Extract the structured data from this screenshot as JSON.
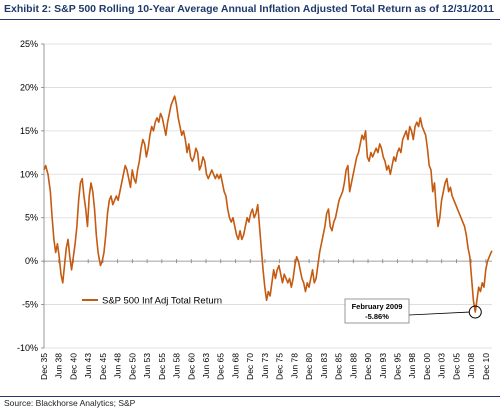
{
  "chart_data": {
    "type": "line",
    "title": "Exhibit 2: S&P 500 Rolling 10-Year Average Annual Inflation Adjusted Total Return as of 12/31/2011",
    "xlabel": "",
    "ylabel": "",
    "ylim": [
      -10,
      25
    ],
    "yticks": [
      {
        "value": -10,
        "label": "-10%"
      },
      {
        "value": -5,
        "label": "-5%"
      },
      {
        "value": 0,
        "label": "0%"
      },
      {
        "value": 5,
        "label": "5%"
      },
      {
        "value": 10,
        "label": "10%"
      },
      {
        "value": 15,
        "label": "15%"
      },
      {
        "value": 20,
        "label": "20%"
      },
      {
        "value": 25,
        "label": "25%"
      }
    ],
    "xlim": [
      1935.92,
      2011.96
    ],
    "xticks": [
      {
        "value": 1935.92,
        "label": "Dec 35"
      },
      {
        "value": 1938.42,
        "label": "Jun 38"
      },
      {
        "value": 1940.92,
        "label": "Dec 40"
      },
      {
        "value": 1943.42,
        "label": "Jun 43"
      },
      {
        "value": 1945.92,
        "label": "Dec 45"
      },
      {
        "value": 1948.42,
        "label": "Jun 48"
      },
      {
        "value": 1950.92,
        "label": "Dec 50"
      },
      {
        "value": 1953.42,
        "label": "Jun 53"
      },
      {
        "value": 1955.92,
        "label": "Dec 55"
      },
      {
        "value": 1958.42,
        "label": "Jun 58"
      },
      {
        "value": 1960.92,
        "label": "Dec 60"
      },
      {
        "value": 1963.42,
        "label": "Jun 63"
      },
      {
        "value": 1965.92,
        "label": "Dec 65"
      },
      {
        "value": 1968.42,
        "label": "Jun 68"
      },
      {
        "value": 1970.92,
        "label": "Dec 70"
      },
      {
        "value": 1973.42,
        "label": "Jun 73"
      },
      {
        "value": 1975.92,
        "label": "Dec 75"
      },
      {
        "value": 1978.42,
        "label": "Jun 78"
      },
      {
        "value": 1980.92,
        "label": "Dec 80"
      },
      {
        "value": 1983.42,
        "label": "Jun 83"
      },
      {
        "value": 1985.92,
        "label": "Dec 85"
      },
      {
        "value": 1988.42,
        "label": "Jun 88"
      },
      {
        "value": 1990.92,
        "label": "Dec 90"
      },
      {
        "value": 1993.42,
        "label": "Jun 93"
      },
      {
        "value": 1995.92,
        "label": "Dec 95"
      },
      {
        "value": 1998.42,
        "label": "Jun 98"
      },
      {
        "value": 2000.92,
        "label": "Dec 00"
      },
      {
        "value": 2003.42,
        "label": "Jun 03"
      },
      {
        "value": 2005.92,
        "label": "Dec 05"
      },
      {
        "value": 2008.42,
        "label": "Jun 08"
      },
      {
        "value": 2010.92,
        "label": "Dec 10"
      }
    ],
    "grid": {
      "horizontal": true,
      "vertical": false
    },
    "legend_position": "bottom-left",
    "series": [
      {
        "name": "S&P 500 Inf Adj Total Return",
        "color": "#c55a11",
        "points": [
          [
            1935.92,
            10.5
          ],
          [
            1936.2,
            11
          ],
          [
            1936.6,
            10
          ],
          [
            1937.0,
            8
          ],
          [
            1937.3,
            5
          ],
          [
            1937.6,
            2.5
          ],
          [
            1937.9,
            1
          ],
          [
            1938.2,
            2
          ],
          [
            1938.5,
            0.5
          ],
          [
            1938.8,
            -1.5
          ],
          [
            1939.1,
            -2.5
          ],
          [
            1939.4,
            -0.5
          ],
          [
            1939.7,
            1.5
          ],
          [
            1940.0,
            2.5
          ],
          [
            1940.3,
            0.5
          ],
          [
            1940.6,
            -1
          ],
          [
            1940.9,
            0.5
          ],
          [
            1941.2,
            2
          ],
          [
            1941.5,
            4
          ],
          [
            1941.8,
            7
          ],
          [
            1942.1,
            9
          ],
          [
            1942.4,
            9.5
          ],
          [
            1942.7,
            7.5
          ],
          [
            1943.0,
            6
          ],
          [
            1943.3,
            4
          ],
          [
            1943.6,
            7.5
          ],
          [
            1943.9,
            9
          ],
          [
            1944.2,
            8
          ],
          [
            1944.5,
            6
          ],
          [
            1944.8,
            3
          ],
          [
            1945.1,
            1
          ],
          [
            1945.5,
            -0.5
          ],
          [
            1945.8,
            0
          ],
          [
            1946.1,
            1
          ],
          [
            1946.4,
            3
          ],
          [
            1946.7,
            5.5
          ],
          [
            1947.0,
            7
          ],
          [
            1947.3,
            7.5
          ],
          [
            1947.6,
            6.5
          ],
          [
            1947.9,
            7
          ],
          [
            1948.2,
            7.5
          ],
          [
            1948.5,
            7
          ],
          [
            1948.8,
            8
          ],
          [
            1949.1,
            9
          ],
          [
            1949.4,
            10
          ],
          [
            1949.7,
            11
          ],
          [
            1950.0,
            10.5
          ],
          [
            1950.3,
            9.5
          ],
          [
            1950.6,
            8.5
          ],
          [
            1950.9,
            10.5
          ],
          [
            1951.2,
            9.5
          ],
          [
            1951.5,
            9
          ],
          [
            1951.8,
            10.5
          ],
          [
            1952.1,
            11.5
          ],
          [
            1952.4,
            13
          ],
          [
            1952.7,
            14
          ],
          [
            1953.0,
            13.5
          ],
          [
            1953.3,
            12
          ],
          [
            1953.6,
            13
          ],
          [
            1953.9,
            14.5
          ],
          [
            1954.2,
            15.5
          ],
          [
            1954.5,
            15
          ],
          [
            1954.8,
            16
          ],
          [
            1955.1,
            16.5
          ],
          [
            1955.4,
            16
          ],
          [
            1955.7,
            17
          ],
          [
            1956.0,
            16.5
          ],
          [
            1956.3,
            15.5
          ],
          [
            1956.6,
            14.5
          ],
          [
            1956.9,
            16
          ],
          [
            1957.2,
            17
          ],
          [
            1957.5,
            18
          ],
          [
            1957.8,
            18.5
          ],
          [
            1958.1,
            19
          ],
          [
            1958.4,
            18
          ],
          [
            1958.7,
            16.5
          ],
          [
            1959.0,
            15.5
          ],
          [
            1959.3,
            14.5
          ],
          [
            1959.6,
            15
          ],
          [
            1959.9,
            14
          ],
          [
            1960.2,
            12.5
          ],
          [
            1960.5,
            13.5
          ],
          [
            1960.8,
            12
          ],
          [
            1961.1,
            11.5
          ],
          [
            1961.4,
            12
          ],
          [
            1961.7,
            13
          ],
          [
            1962.0,
            12.5
          ],
          [
            1962.3,
            10.5
          ],
          [
            1962.6,
            11
          ],
          [
            1962.9,
            12
          ],
          [
            1963.2,
            11.5
          ],
          [
            1963.5,
            10
          ],
          [
            1963.8,
            9.5
          ],
          [
            1964.1,
            10
          ],
          [
            1964.4,
            10.5
          ],
          [
            1964.7,
            10
          ],
          [
            1965.0,
            9.5
          ],
          [
            1965.3,
            10
          ],
          [
            1965.6,
            9.5
          ],
          [
            1965.9,
            10
          ],
          [
            1966.2,
            9
          ],
          [
            1966.5,
            8
          ],
          [
            1966.8,
            7.5
          ],
          [
            1967.1,
            6
          ],
          [
            1967.4,
            5
          ],
          [
            1967.7,
            4.5
          ],
          [
            1968.0,
            5
          ],
          [
            1968.3,
            4
          ],
          [
            1968.6,
            3
          ],
          [
            1968.9,
            2.5
          ],
          [
            1969.2,
            3.5
          ],
          [
            1969.5,
            2.5
          ],
          [
            1969.8,
            3
          ],
          [
            1970.1,
            4
          ],
          [
            1970.4,
            5
          ],
          [
            1970.7,
            4.5
          ],
          [
            1971.0,
            5.5
          ],
          [
            1971.3,
            6
          ],
          [
            1971.6,
            5
          ],
          [
            1971.9,
            5.5
          ],
          [
            1972.2,
            6.5
          ],
          [
            1972.5,
            4
          ],
          [
            1972.8,
            1.5
          ],
          [
            1973.1,
            -1
          ],
          [
            1973.4,
            -3
          ],
          [
            1973.7,
            -4.5
          ],
          [
            1974.0,
            -3.5
          ],
          [
            1974.3,
            -4
          ],
          [
            1974.6,
            -2.5
          ],
          [
            1974.9,
            -1
          ],
          [
            1975.2,
            -2
          ],
          [
            1975.5,
            -1
          ],
          [
            1975.8,
            -0.5
          ],
          [
            1976.1,
            -1.5
          ],
          [
            1976.4,
            -2.5
          ],
          [
            1976.7,
            -1.5
          ],
          [
            1977.0,
            -2
          ],
          [
            1977.3,
            -2.5
          ],
          [
            1977.6,
            -2
          ],
          [
            1977.9,
            -3
          ],
          [
            1978.2,
            -2
          ],
          [
            1978.5,
            -0.5
          ],
          [
            1978.8,
            0.5
          ],
          [
            1979.1,
            0
          ],
          [
            1979.4,
            -1
          ],
          [
            1979.7,
            -2
          ],
          [
            1980.0,
            -2.5
          ],
          [
            1980.3,
            -3.5
          ],
          [
            1980.6,
            -2.5
          ],
          [
            1980.9,
            -3
          ],
          [
            1981.2,
            -2
          ],
          [
            1981.5,
            -1
          ],
          [
            1981.8,
            -2.5
          ],
          [
            1982.1,
            -2
          ],
          [
            1982.4,
            -0.5
          ],
          [
            1982.7,
            1
          ],
          [
            1983.0,
            2
          ],
          [
            1983.3,
            3
          ],
          [
            1983.6,
            4
          ],
          [
            1983.9,
            5.5
          ],
          [
            1984.2,
            6
          ],
          [
            1984.5,
            4
          ],
          [
            1984.8,
            3.5
          ],
          [
            1985.1,
            4.5
          ],
          [
            1985.4,
            5
          ],
          [
            1985.7,
            6
          ],
          [
            1986.0,
            7
          ],
          [
            1986.3,
            7.5
          ],
          [
            1986.6,
            8
          ],
          [
            1986.9,
            9
          ],
          [
            1987.2,
            10.5
          ],
          [
            1987.5,
            11
          ],
          [
            1987.8,
            8
          ],
          [
            1988.1,
            9
          ],
          [
            1988.4,
            10
          ],
          [
            1988.7,
            11
          ],
          [
            1989.0,
            12
          ],
          [
            1989.3,
            12.5
          ],
          [
            1989.6,
            13.5
          ],
          [
            1989.9,
            14.5
          ],
          [
            1990.2,
            14
          ],
          [
            1990.5,
            15
          ],
          [
            1990.8,
            12
          ],
          [
            1991.1,
            11.5
          ],
          [
            1991.4,
            12.5
          ],
          [
            1991.7,
            12
          ],
          [
            1992.0,
            12.5
          ],
          [
            1992.3,
            13
          ],
          [
            1992.6,
            12.5
          ],
          [
            1992.9,
            13.5
          ],
          [
            1993.2,
            13
          ],
          [
            1993.5,
            12
          ],
          [
            1993.8,
            11.5
          ],
          [
            1994.1,
            10.5
          ],
          [
            1994.4,
            11
          ],
          [
            1994.7,
            10
          ],
          [
            1995.0,
            11
          ],
          [
            1995.3,
            12
          ],
          [
            1995.6,
            11.5
          ],
          [
            1995.9,
            12.5
          ],
          [
            1996.2,
            13
          ],
          [
            1996.5,
            12.5
          ],
          [
            1996.8,
            14
          ],
          [
            1997.1,
            14.5
          ],
          [
            1997.4,
            15
          ],
          [
            1997.7,
            14
          ],
          [
            1998.0,
            15.5
          ],
          [
            1998.3,
            15
          ],
          [
            1998.6,
            14
          ],
          [
            1998.9,
            15.5
          ],
          [
            1999.2,
            16
          ],
          [
            1999.5,
            15.5
          ],
          [
            1999.8,
            16.5
          ],
          [
            2000.1,
            15.5
          ],
          [
            2000.4,
            15
          ],
          [
            2000.7,
            14.5
          ],
          [
            2001.0,
            13
          ],
          [
            2001.3,
            11
          ],
          [
            2001.6,
            10.5
          ],
          [
            2001.9,
            8
          ],
          [
            2002.2,
            9
          ],
          [
            2002.5,
            6
          ],
          [
            2002.8,
            4
          ],
          [
            2003.1,
            5
          ],
          [
            2003.4,
            7
          ],
          [
            2003.7,
            8
          ],
          [
            2004.0,
            9
          ],
          [
            2004.3,
            9.5
          ],
          [
            2004.6,
            8
          ],
          [
            2004.9,
            8.5
          ],
          [
            2005.2,
            7.5
          ],
          [
            2005.5,
            7
          ],
          [
            2005.8,
            6.5
          ],
          [
            2006.1,
            6
          ],
          [
            2006.4,
            5.5
          ],
          [
            2006.7,
            5
          ],
          [
            2007.0,
            4.5
          ],
          [
            2007.3,
            4
          ],
          [
            2007.6,
            3
          ],
          [
            2007.9,
            1.5
          ],
          [
            2008.2,
            0.5
          ],
          [
            2008.5,
            -2
          ],
          [
            2008.8,
            -4.5
          ],
          [
            2009.12,
            -5.86
          ],
          [
            2009.4,
            -4.5
          ],
          [
            2009.7,
            -3
          ],
          [
            2010.0,
            -3.5
          ],
          [
            2010.3,
            -2.5
          ],
          [
            2010.6,
            -3
          ],
          [
            2010.9,
            -1
          ],
          [
            2011.2,
            0
          ],
          [
            2011.5,
            0.5
          ],
          [
            2011.8,
            1
          ],
          [
            2011.96,
            1.2
          ]
        ]
      }
    ],
    "annotation": {
      "label": "February 2009",
      "value_label": "-5.86%",
      "x": 2009.12,
      "y": -5.86
    },
    "source": "Source: Blackhorse Analytics; S&P"
  }
}
